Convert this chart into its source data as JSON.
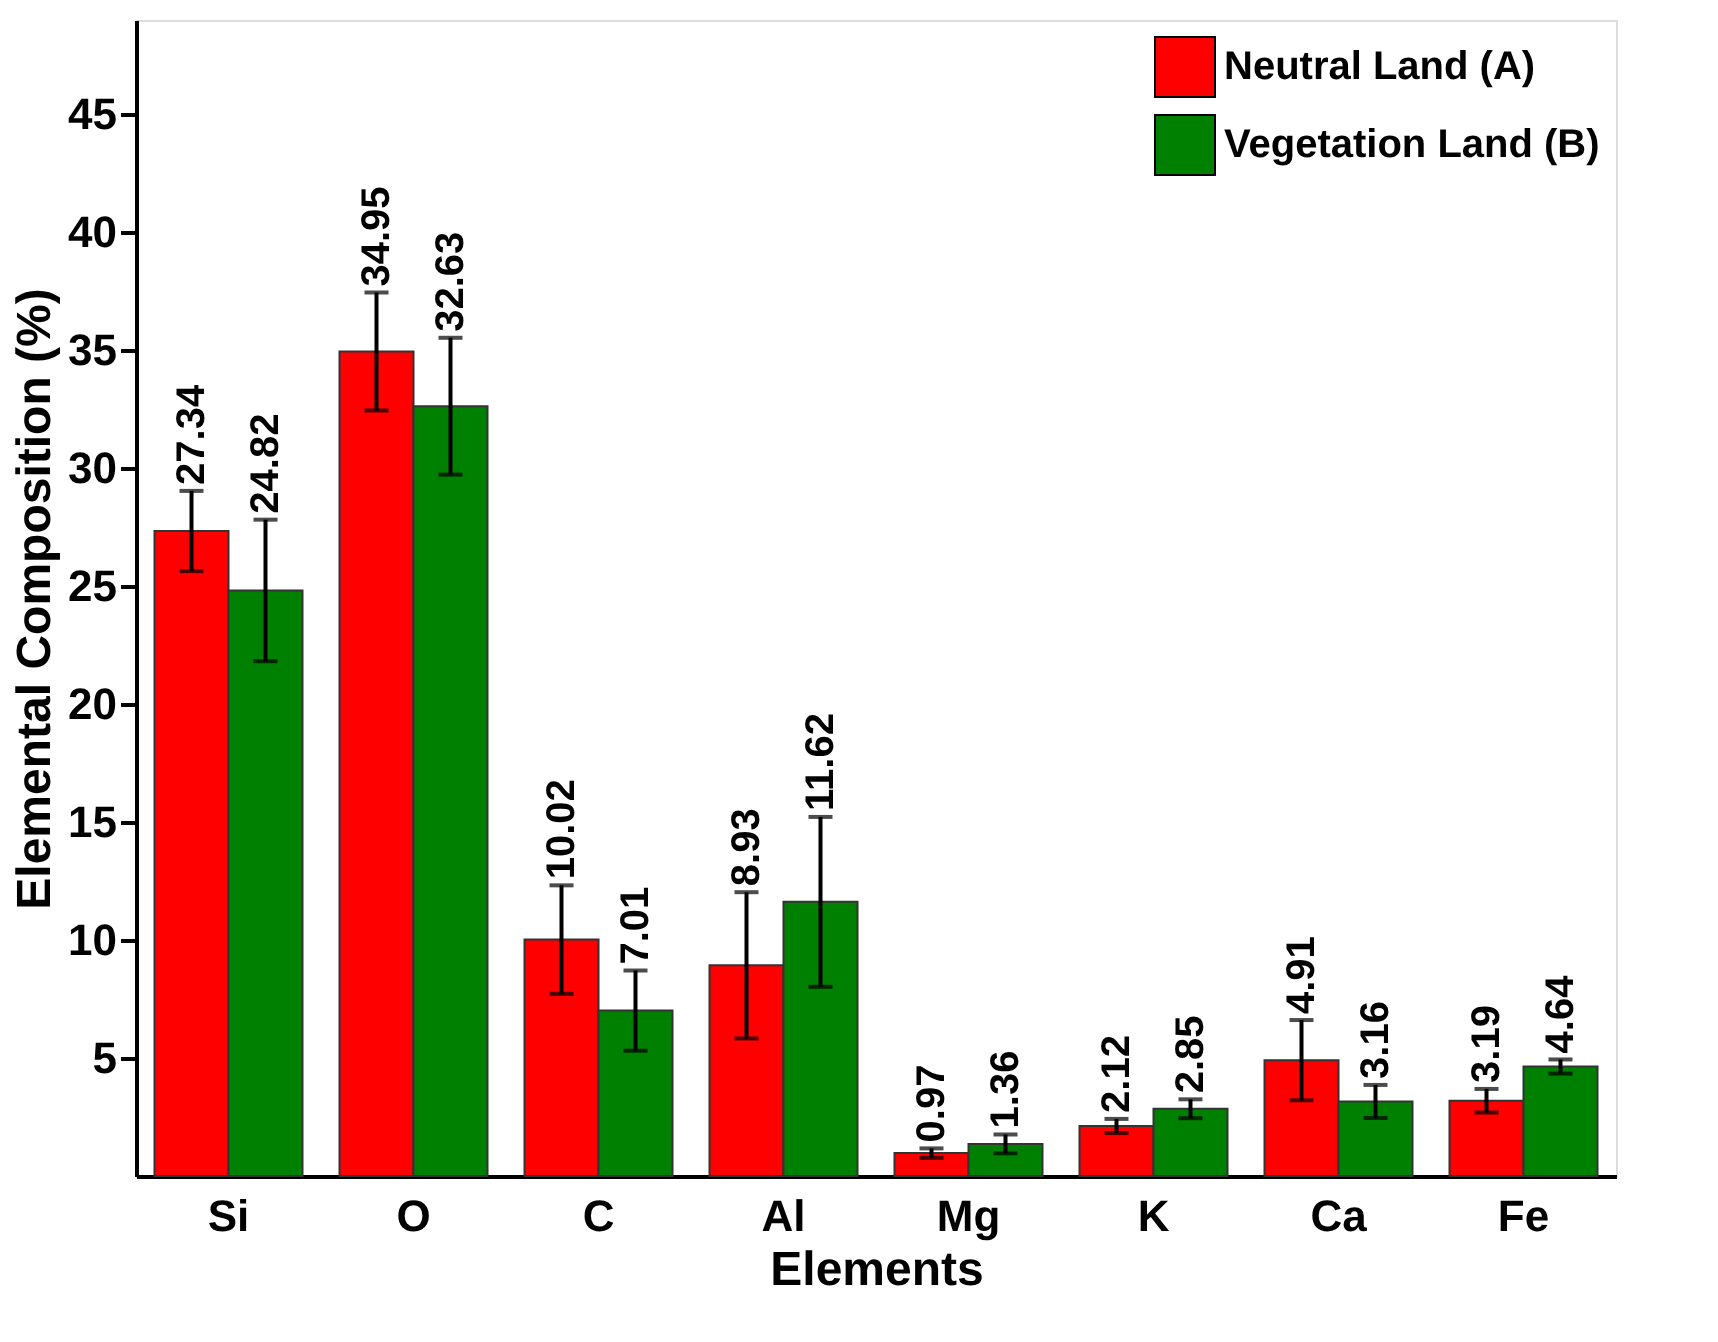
{
  "chart_data": {
    "type": "bar",
    "xlabel": "Elements",
    "ylabel": "Elemental Composition (%)",
    "categories": [
      "Si",
      "O",
      "C",
      "Al",
      "Mg",
      "K",
      "Ca",
      "Fe"
    ],
    "series": [
      {
        "name": "Neutral Land (A)",
        "color": "#ff0000",
        "values": [
          27.34,
          34.95,
          10.02,
          8.93,
          0.97,
          2.12,
          4.91,
          3.19
        ],
        "errors": [
          1.7,
          2.5,
          2.3,
          3.1,
          0.2,
          0.3,
          1.7,
          0.5
        ]
      },
      {
        "name": "Vegetation Land (B)",
        "color": "#008000",
        "values": [
          24.82,
          32.63,
          7.01,
          11.62,
          1.36,
          2.85,
          3.16,
          4.64
        ],
        "errors": [
          3.0,
          2.9,
          1.7,
          3.6,
          0.4,
          0.4,
          0.7,
          0.3
        ]
      }
    ],
    "ylim": [
      0,
      49
    ],
    "yticks": [
      5,
      10,
      15,
      20,
      25,
      30,
      35,
      40,
      45
    ],
    "data_labels": true,
    "legend": "top right",
    "grid": false
  }
}
